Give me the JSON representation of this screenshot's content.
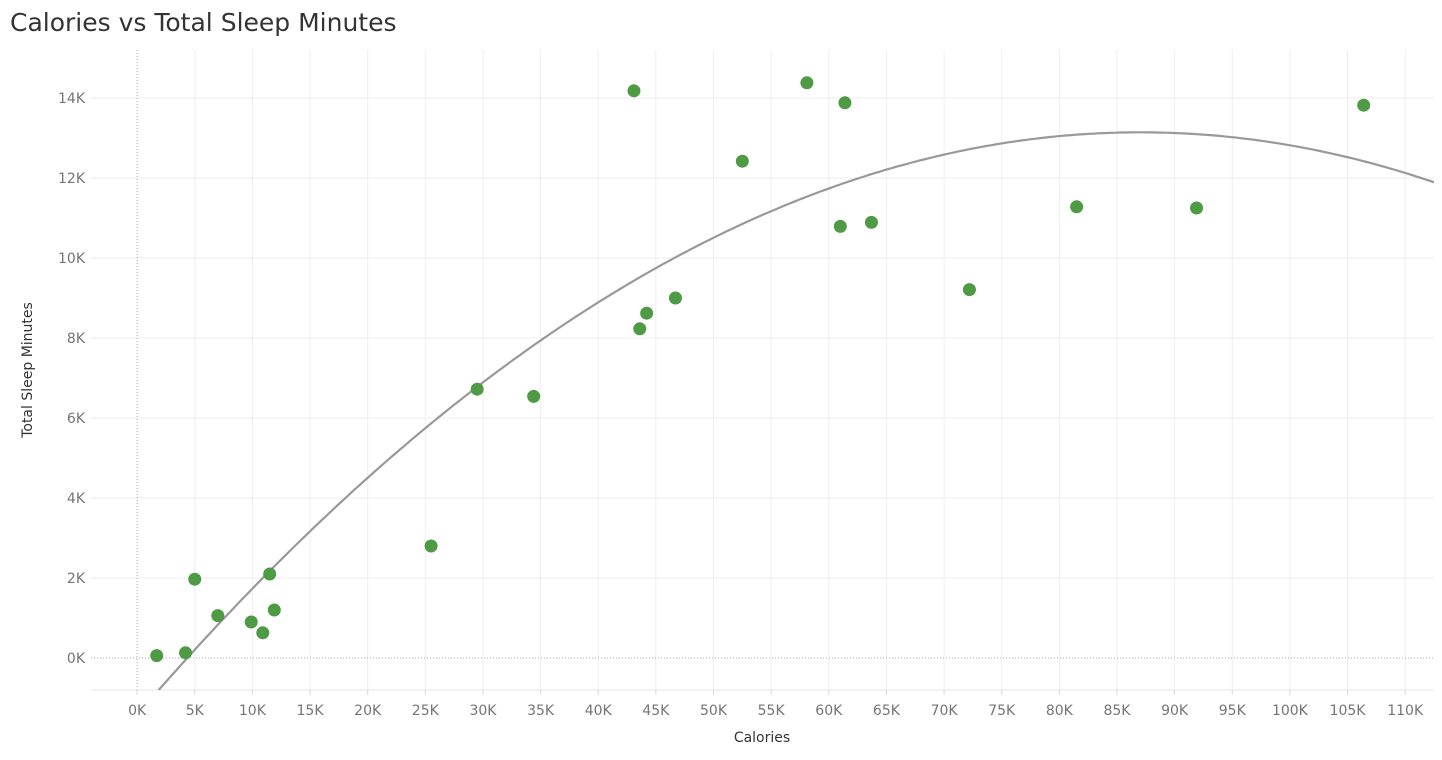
{
  "chart_data": {
    "type": "scatter",
    "title": "Calories vs Total Sleep Minutes",
    "xlabel": "Calories",
    "ylabel": "Total Sleep Minutes",
    "xlim": [
      -4000,
      112500
    ],
    "ylim": [
      -800,
      15200
    ],
    "x_ticks": [
      0,
      5000,
      10000,
      15000,
      20000,
      25000,
      30000,
      35000,
      40000,
      45000,
      50000,
      55000,
      60000,
      65000,
      70000,
      75000,
      80000,
      85000,
      90000,
      95000,
      100000,
      105000,
      110000
    ],
    "x_tick_labels": [
      "0K",
      "5K",
      "10K",
      "15K",
      "20K",
      "25K",
      "30K",
      "35K",
      "40K",
      "45K",
      "50K",
      "55K",
      "60K",
      "65K",
      "70K",
      "75K",
      "80K",
      "85K",
      "90K",
      "95K",
      "100K",
      "105K",
      "110K"
    ],
    "y_ticks": [
      0,
      2000,
      4000,
      6000,
      8000,
      10000,
      12000,
      14000
    ],
    "y_tick_labels": [
      "0K",
      "2K",
      "4K",
      "6K",
      "8K",
      "10K",
      "12K",
      "14K"
    ],
    "grid": true,
    "marker_color": "#4e9a45",
    "trend_color": "#999999",
    "points": [
      {
        "x": 1700,
        "y": 60
      },
      {
        "x": 4200,
        "y": 130
      },
      {
        "x": 5000,
        "y": 1970
      },
      {
        "x": 7000,
        "y": 1060
      },
      {
        "x": 9900,
        "y": 900
      },
      {
        "x": 10900,
        "y": 630
      },
      {
        "x": 11500,
        "y": 2100
      },
      {
        "x": 11900,
        "y": 1200
      },
      {
        "x": 25500,
        "y": 2800
      },
      {
        "x": 29500,
        "y": 6720
      },
      {
        "x": 34400,
        "y": 6540
      },
      {
        "x": 43100,
        "y": 14180
      },
      {
        "x": 43600,
        "y": 8230
      },
      {
        "x": 44200,
        "y": 8620
      },
      {
        "x": 46700,
        "y": 9000
      },
      {
        "x": 52500,
        "y": 12420
      },
      {
        "x": 58100,
        "y": 14380
      },
      {
        "x": 61000,
        "y": 10790
      },
      {
        "x": 61400,
        "y": 13880
      },
      {
        "x": 63700,
        "y": 10890
      },
      {
        "x": 72200,
        "y": 9210
      },
      {
        "x": 81500,
        "y": 11280
      },
      {
        "x": 91900,
        "y": 11250
      },
      {
        "x": 106400,
        "y": 13820
      }
    ],
    "trend": {
      "type": "polynomial-2",
      "coefficients": [
        -1420,
        0.33468,
        -1.923e-06
      ]
    }
  }
}
